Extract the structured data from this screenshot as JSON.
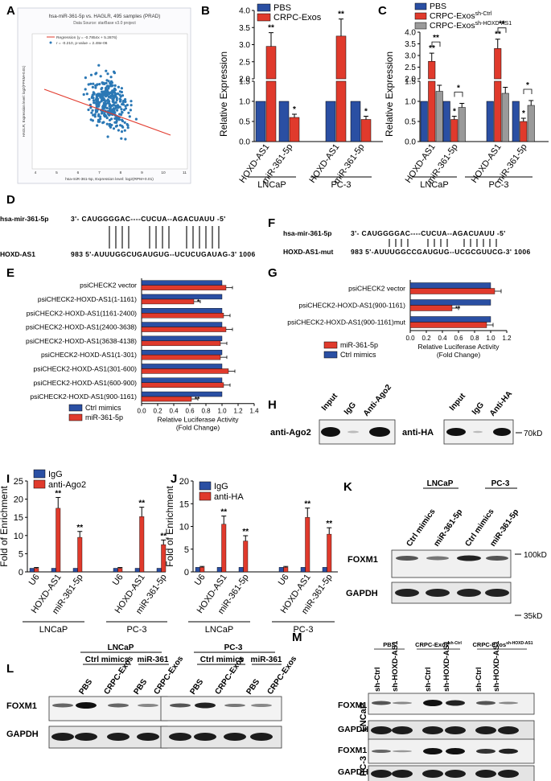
{
  "colors": {
    "pbs": "#2a4fa3",
    "exos": "#e03a2c",
    "grey": "#9a9a9a",
    "ago2": "#e03a2c",
    "igg": "#2a4fa3"
  },
  "panels": {
    "A": "A",
    "B": "B",
    "C": "C",
    "D": "D",
    "E": "E",
    "F": "F",
    "G": "G",
    "H": "H",
    "I": "I",
    "J": "J",
    "K": "K",
    "L": "L",
    "M": "M"
  },
  "panelA": {
    "title": "hsa-miR-361-5p vs. HAGLR, 495 samples (PRAD)",
    "subtitle": "Data Source: starBase v3.0 project",
    "legend1": "Regression (y = -0.7854x + 5.2876)",
    "legend2": "r = -0.210, p-value = 2.48e-06",
    "xlabel": "hsa-miR-361-5p, Expression level: log2(RPM+0.01)",
    "ylabel": "HAGLR, Expression level: log2(FPKM+0.01)",
    "xticks": [
      "4",
      "5",
      "6",
      "7",
      "8",
      "9",
      "10",
      "11"
    ]
  },
  "chart_data": [
    {
      "id": "B",
      "type": "bar",
      "ylabel": "Relative Expression",
      "legend": [
        "PBS",
        "CRPC-Exos"
      ],
      "categories": [
        "HOXD-AS1",
        "miR-361-5p",
        "HOXD-AS1",
        "miR-361-5p"
      ],
      "groups": [
        "LNCaP",
        "PC-3"
      ],
      "series": [
        {
          "name": "PBS",
          "values": [
            1,
            1,
            1,
            1
          ]
        },
        {
          "name": "CRPC-Exos",
          "values": [
            2.95,
            0.6,
            3.25,
            0.55
          ]
        }
      ],
      "errors": [
        [
          0,
          0,
          0,
          0
        ],
        [
          0.4,
          0.08,
          0.5,
          0.08
        ]
      ],
      "sig": [
        [
          "",
          ""
        ],
        [
          "**",
          "*",
          "**",
          "*"
        ]
      ],
      "yticks_low": [
        "0.0",
        "0.5",
        "1.0",
        "1.5"
      ],
      "yticks_high": [
        "2.0",
        "2.5",
        "3.0",
        "3.5",
        "4.0"
      ]
    },
    {
      "id": "C",
      "type": "bar",
      "ylabel": "Relative Expression",
      "legend": [
        "PBS",
        "CRPC-Exos",
        "CRPC-Exos"
      ],
      "legend_sup": [
        "",
        "sh-Ctrl",
        "sh-HOXD-AS1"
      ],
      "categories": [
        "HOXD-AS1",
        "miR-361-5p",
        "HOXD-AS1",
        "miR-361-5p"
      ],
      "groups": [
        "LNCaP",
        "PC-3"
      ],
      "series": [
        {
          "name": "PBS",
          "values": [
            1,
            1,
            1,
            1
          ]
        },
        {
          "name": "CRPC-Exos sh-Ctrl",
          "values": [
            2.75,
            0.55,
            3.3,
            0.5
          ]
        },
        {
          "name": "CRPC-Exos sh-HOXD-AS1",
          "values": [
            1.25,
            0.85,
            1.2,
            0.9
          ]
        }
      ],
      "errors": [
        [
          0,
          0,
          0,
          0
        ],
        [
          0.35,
          0.08,
          0.4,
          0.08
        ],
        [
          0.15,
          0.1,
          0.15,
          0.12
        ]
      ],
      "sig_labels": [
        "**",
        "**",
        "*",
        "*",
        "**",
        "**",
        "*",
        "*"
      ],
      "yticks_low": [
        "0.0",
        "0.5",
        "1.0",
        "1.5"
      ],
      "yticks_high": [
        "2.0",
        "2.5",
        "3.0",
        "3.5",
        "4.0"
      ]
    },
    {
      "id": "E",
      "type": "bar",
      "xlabel": "Relative Luciferase Activity",
      "xlabel2": "(Fold Change)",
      "legend": [
        "Ctrl mimics",
        "miR-361-5p"
      ],
      "categories": [
        "psiCHECK2 vector",
        "psiCHECK2-HOXD-AS1(1-1161)",
        "psiCHECK2-HOXD-AS1(1161-2400)",
        "psiCHECK2-HOXD-AS1(2400-3638)",
        "psiCHECK2-HOXD-AS1(3638-4138)",
        "psiCHECK2-HOXD-AS1(1-301)",
        "psiCHECK2-HOXD-AS1(301-600)",
        "psiCHECK2-HOXD-AS1(600-900)",
        "psiCHECK2-HOXD-AS1(900-1161)"
      ],
      "series": [
        {
          "name": "Ctrl mimics",
          "values": [
            1,
            1,
            1,
            1,
            1,
            1,
            1,
            1,
            1
          ]
        },
        {
          "name": "miR-361-5p",
          "values": [
            1.05,
            0.65,
            1.02,
            1.05,
            0.98,
            0.98,
            1.08,
            1.02,
            0.62
          ]
        }
      ],
      "sig": [
        "",
        "*",
        "",
        "",
        "",
        "",
        "",
        "",
        "**"
      ],
      "xticks": [
        "0.0",
        "0.2",
        "0.4",
        "0.6",
        "0.8",
        "1.0",
        "1.2",
        "1.4"
      ]
    },
    {
      "id": "G",
      "type": "bar",
      "xlabel": "Relative Luciferase Activity",
      "xlabel2": "(Fold Change)",
      "legend": [
        "miR-361-5p",
        "Ctrl mimics"
      ],
      "categories": [
        "psiCHECK2 vector",
        "psiCHECK2-HOXD-AS1(900-1161)",
        "psiCHECK2-HOXD-AS1(900-1161)mut"
      ],
      "series": [
        {
          "name": "Ctrl mimics",
          "values": [
            1,
            1,
            1
          ]
        },
        {
          "name": "miR-361-5p",
          "values": [
            1.05,
            0.52,
            0.95
          ]
        }
      ],
      "sig": [
        "",
        "**",
        ""
      ],
      "xticks": [
        "0.0",
        "0.2",
        "0.4",
        "0.6",
        "0.8",
        "1.0",
        "1.2"
      ]
    },
    {
      "id": "I",
      "type": "bar",
      "ylabel": "Fold of Enrichment",
      "legend": [
        "IgG",
        "anti-Ago2"
      ],
      "categories": [
        "U6",
        "HOXD-AS1",
        "miR-361-5p",
        "U6",
        "HOXD-AS1",
        "miR-361-5p"
      ],
      "groups": [
        "LNCaP",
        "PC-3"
      ],
      "series": [
        {
          "name": "IgG",
          "values": [
            1,
            1,
            1,
            1,
            1,
            1
          ]
        },
        {
          "name": "anti-Ago2",
          "values": [
            1,
            17.5,
            9.5,
            1,
            15.2,
            7.5
          ]
        }
      ],
      "sig": [
        "",
        "**",
        "**",
        "",
        "**",
        "**"
      ],
      "yticks": [
        "0",
        "5",
        "10",
        "15",
        "20",
        "25"
      ]
    },
    {
      "id": "J",
      "type": "bar",
      "ylabel": "Fold of Enrichment",
      "legend": [
        "IgG",
        "anti-HA"
      ],
      "categories": [
        "U6",
        "HOXD-AS1",
        "miR-361-5p",
        "U6",
        "HOXD-AS1",
        "miR-361-5p"
      ],
      "groups": [
        "LNCaP",
        "PC-3"
      ],
      "series": [
        {
          "name": "IgG",
          "values": [
            1,
            1,
            1,
            1,
            1,
            1
          ]
        },
        {
          "name": "anti-HA",
          "values": [
            1,
            10.5,
            6.8,
            1,
            12,
            8.3
          ]
        }
      ],
      "sig": [
        "",
        "**",
        "**",
        "",
        "**",
        "**"
      ],
      "yticks": [
        "0",
        "5",
        "10",
        "15",
        "20"
      ]
    }
  ],
  "panelD": {
    "name1": "hsa-mir-361-5p",
    "seq1": "3'- CAUGGGGAC----CUCUA--AGACUAUU -5'",
    "name2": "HOXD-AS1",
    "seq2": "983 5'-AUUUGGCUGAUGUG--UCUCUGAUAG-3' 1006"
  },
  "panelF": {
    "name1": "hsa-mir-361-5p",
    "seq1": "3'-  CAUGGGGAC----CUCUA--AGACUAUU -5'",
    "name2": "HOXD-AS1-mut",
    "seq2": "983 5'-AUUUGGCCGAUGUG--UCGCGUUCG-3' 1006"
  },
  "panelH": {
    "lanes1": [
      "Input",
      "IgG",
      "Anti-Ago2"
    ],
    "label1": "anti-Ago2",
    "lanes2": [
      "Input",
      "IgG",
      "Anti-HA"
    ],
    "label2": "anti-HA",
    "marker": "70kD"
  },
  "panelK": {
    "groups": [
      "LNCaP",
      "PC-3"
    ],
    "lanes": [
      "Ctrl mimics",
      "miR-361-5p",
      "Ctrl mimics",
      "miR-361-5p"
    ],
    "rows": [
      "FOXM1",
      "GAPDH"
    ],
    "markers": [
      "100kD",
      "35kD"
    ]
  },
  "panelL": {
    "groups": [
      "LNCaP",
      "PC-3"
    ],
    "subgroups": [
      "Ctrl mimics",
      "miR-361",
      "Ctrl mimics",
      "miR-361"
    ],
    "lanes": [
      "PBS",
      "CRPC-Exos",
      "PBS",
      "CRPC-Exos",
      "PBS",
      "CRPC-Exos",
      "PBS",
      "CRPC-Exos"
    ],
    "rows": [
      "FOXM1",
      "GAPDH"
    ]
  },
  "panelM": {
    "groups": [
      "PBS",
      "CRPC-Exos",
      "CRPC-Exos"
    ],
    "group_sup": [
      "",
      "sh-Ctrl",
      "sh-HOXD-AS1"
    ],
    "lanes": [
      "sh-Ctrl",
      "sh-HOXD-AS1",
      "sh-Ctrl",
      "sh-HOXD-AS1",
      "sh-Ctrl",
      "sh-HOXD-AS1"
    ],
    "cells": [
      "LNCaP",
      "PC-3"
    ],
    "rows": [
      "FOXM1",
      "GAPDH"
    ]
  }
}
